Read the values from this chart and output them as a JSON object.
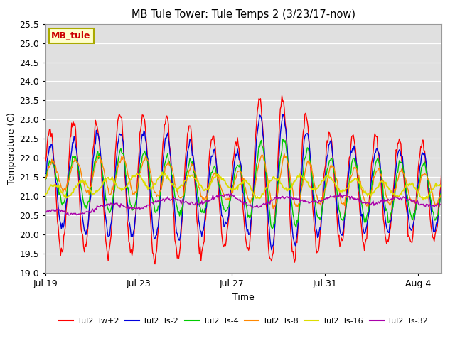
{
  "title": "MB Tule Tower: Tule Temps 2 (3/23/17-now)",
  "xlabel": "Time",
  "ylabel": "Temperature (C)",
  "ylim": [
    19.0,
    25.5
  ],
  "yticks": [
    19.0,
    19.5,
    20.0,
    20.5,
    21.0,
    21.5,
    22.0,
    22.5,
    23.0,
    23.5,
    24.0,
    24.5,
    25.0,
    25.5
  ],
  "line_colors": {
    "Tw2": "#ff0000",
    "Ts2": "#0000dd",
    "Ts4": "#00cc00",
    "Ts8": "#ff8800",
    "Ts16": "#dddd00",
    "Ts32": "#aa00aa"
  },
  "legend_labels": [
    "Tul2_Tw+2",
    "Tul2_Ts-2",
    "Tul2_Ts-4",
    "Tul2_Ts-8",
    "Tul2_Ts-16",
    "Tul2_Ts-32"
  ],
  "station_label": "MB_tule",
  "x_tick_labels": [
    "Jul 19",
    "Jul 23",
    "Jul 27",
    "Jul 31",
    "Aug 4"
  ],
  "x_tick_positions": [
    0,
    4,
    8,
    12,
    16
  ]
}
